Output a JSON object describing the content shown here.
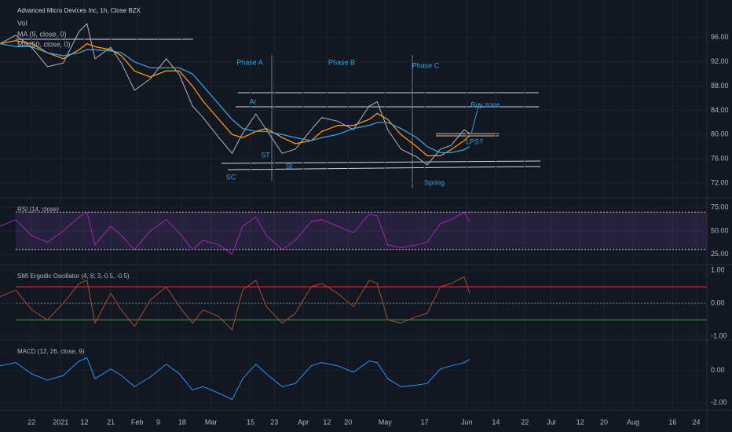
{
  "chart_data": [
    {
      "type": "line",
      "title": "Advanced Micro Devices Inc, 1h, Close BZX",
      "subtitle": "Vol",
      "x": [
        0,
        6,
        12,
        18,
        24,
        30,
        33,
        36,
        42,
        46,
        51,
        57,
        63,
        68,
        73,
        77,
        83,
        88,
        92,
        97,
        101,
        107,
        112,
        118,
        122,
        128,
        134,
        140,
        143,
        147,
        152,
        158,
        162,
        167,
        171,
        176,
        178
      ],
      "values": [
        95,
        96.4,
        94.4,
        91.2,
        91.8,
        97,
        98.3,
        92.5,
        94.4,
        91.8,
        87.3,
        89.2,
        92.5,
        89.9,
        84.7,
        82.8,
        79.5,
        76.9,
        80.2,
        83.4,
        80.8,
        76.9,
        77.6,
        80.8,
        82.8,
        82.2,
        80.8,
        84.7,
        85.4,
        80.8,
        77.6,
        76.3,
        75,
        77.6,
        78.2,
        80.8,
        80.2
      ],
      "color": "#b2b5be",
      "series": [
        {
          "name": "MA (9, close, 0)",
          "color": "#ff9800",
          "values": [
            95,
            95.5,
            95,
            93.5,
            92.5,
            94,
            95,
            94.5,
            94,
            93,
            90.5,
            89.5,
            90.5,
            90.5,
            88,
            85.5,
            82.5,
            80,
            79.5,
            80.5,
            81,
            79.5,
            78.5,
            79,
            80.5,
            81.5,
            81.5,
            82.5,
            83.5,
            82.5,
            80,
            78,
            76.5,
            76.5,
            77.5,
            79,
            79.8
          ]
        },
        {
          "name": "MA (50, close, 0)",
          "color": "#2ca5e0",
          "values": [
            95,
            94.5,
            94.5,
            93.5,
            93,
            93.5,
            94,
            94,
            93.8,
            93.5,
            92,
            91,
            91,
            91,
            90,
            88,
            85,
            82.5,
            81,
            80.5,
            80.5,
            80,
            79.5,
            79,
            79.5,
            80,
            81,
            81.5,
            82,
            82,
            81,
            79.5,
            78,
            77,
            77,
            77.5,
            78
          ]
        }
      ],
      "annotations": [
        "Phase A",
        "Phase B",
        "Phase C",
        "Ar",
        "ST",
        "SC",
        "St",
        "Spring",
        "LPS?",
        "Buy zone"
      ],
      "xlim": [
        0,
        268
      ],
      "xticks": [
        {
          "value": 12,
          "label": "22"
        },
        {
          "value": 23,
          "label": "2021"
        },
        {
          "value": 32,
          "label": "12"
        },
        {
          "value": 42,
          "label": "21"
        },
        {
          "value": 52,
          "label": "Feb"
        },
        {
          "value": 60,
          "label": "9"
        },
        {
          "value": 69,
          "label": "18"
        },
        {
          "value": 80,
          "label": "Mar"
        },
        {
          "value": 95,
          "label": "15"
        },
        {
          "value": 104,
          "label": "23"
        },
        {
          "value": 115,
          "label": "Apr"
        },
        {
          "value": 124,
          "label": "12"
        },
        {
          "value": 132,
          "label": "20"
        },
        {
          "value": 146,
          "label": "May"
        },
        {
          "value": 161,
          "label": "17"
        },
        {
          "value": 177,
          "label": "Jun"
        },
        {
          "value": 188,
          "label": "14"
        },
        {
          "value": 199,
          "label": "22"
        },
        {
          "value": 209,
          "label": "Jul"
        },
        {
          "value": 220,
          "label": "12"
        },
        {
          "value": 229,
          "label": "20"
        },
        {
          "value": 240,
          "label": "Aug"
        },
        {
          "value": 255,
          "label": "16"
        },
        {
          "value": 264,
          "label": "24"
        }
      ],
      "ylim": [
        69.8,
        102.2
      ],
      "yticks": [
        {
          "value": 72,
          "label": "72.00"
        },
        {
          "value": 76,
          "label": "76.00"
        },
        {
          "value": 80,
          "label": "80.00"
        },
        {
          "value": 84,
          "label": "84.00"
        },
        {
          "value": 88,
          "label": "88.00"
        },
        {
          "value": 92,
          "label": "92.00"
        },
        {
          "value": 96,
          "label": "96.00"
        }
      ],
      "grid": true
    },
    {
      "type": "line",
      "title": "RSI (14, close)",
      "x": [
        0,
        6,
        12,
        18,
        24,
        30,
        33,
        36,
        42,
        46,
        51,
        57,
        63,
        68,
        73,
        77,
        83,
        88,
        92,
        97,
        101,
        107,
        112,
        118,
        122,
        128,
        134,
        140,
        143,
        147,
        152,
        158,
        162,
        167,
        171,
        176,
        178
      ],
      "values": [
        55,
        62,
        45,
        38,
        50,
        65,
        70,
        35,
        55,
        45,
        30,
        50,
        62,
        48,
        30,
        40,
        35,
        25,
        55,
        65,
        45,
        30,
        40,
        60,
        62,
        55,
        48,
        68,
        66,
        35,
        32,
        35,
        38,
        58,
        62,
        70,
        60
      ],
      "color": "#9c27b0",
      "bands": [
        70,
        30
      ],
      "band_colors": [
        "#b2b5be",
        "#b2b5be"
      ],
      "ylim": [
        14.7,
        83.6
      ],
      "yticks": [
        {
          "value": 25,
          "label": "25.00"
        },
        {
          "value": 50,
          "label": "50.00"
        },
        {
          "value": 75,
          "label": "75.00"
        }
      ],
      "grid": true
    },
    {
      "type": "line",
      "title": "SMI Ergodic Oscillator (4, 8, 3, 0.5, -0.5)",
      "x": [
        0,
        6,
        12,
        18,
        24,
        30,
        33,
        36,
        42,
        46,
        51,
        57,
        63,
        68,
        73,
        77,
        83,
        88,
        92,
        97,
        101,
        107,
        112,
        118,
        122,
        128,
        134,
        140,
        143,
        147,
        152,
        158,
        162,
        167,
        171,
        176,
        178
      ],
      "values": [
        0.2,
        0.4,
        -0.2,
        -0.5,
        0,
        0.6,
        0.7,
        -0.6,
        0.3,
        -0.2,
        -0.7,
        0.1,
        0.5,
        -0.1,
        -0.6,
        -0.2,
        -0.4,
        -0.8,
        0.4,
        0.7,
        -0.1,
        -0.6,
        -0.3,
        0.5,
        0.6,
        0.3,
        -0.1,
        0.7,
        0.6,
        -0.5,
        -0.6,
        -0.4,
        -0.3,
        0.5,
        0.6,
        0.8,
        0.3
      ],
      "color": "#a0522d",
      "bands": [
        0.5,
        0,
        -0.5
      ],
      "band_colors": [
        "#e53935",
        "#787b86",
        "#43a047"
      ],
      "ylim": [
        -1.09,
        1.12
      ],
      "yticks": [
        {
          "value": -1,
          "label": "-1.00"
        },
        {
          "value": 0,
          "label": "0.00"
        },
        {
          "value": 1,
          "label": "1.00"
        }
      ],
      "grid": true
    },
    {
      "type": "line",
      "title": "MACD (12, 26, close, 9)",
      "x": [
        0,
        6,
        12,
        18,
        24,
        30,
        33,
        36,
        42,
        46,
        51,
        57,
        63,
        68,
        73,
        77,
        83,
        88,
        92,
        97,
        101,
        107,
        112,
        118,
        122,
        128,
        134,
        140,
        143,
        147,
        152,
        158,
        162,
        167,
        171,
        176,
        178
      ],
      "values": [
        0.3,
        0.5,
        -0.2,
        -0.6,
        -0.3,
        0.6,
        0.8,
        -0.5,
        0.1,
        -0.3,
        -1.0,
        -0.4,
        0.4,
        -0.2,
        -1.2,
        -1.0,
        -1.4,
        -1.8,
        -0.5,
        0.4,
        -0.2,
        -1.0,
        -0.8,
        0.3,
        0.5,
        0.3,
        -0.1,
        0.6,
        0.5,
        -0.5,
        -1.0,
        -0.9,
        -0.8,
        0.1,
        0.3,
        0.5,
        0.7
      ],
      "color": "#2196f3",
      "ylim": [
        -2.4,
        1.8
      ],
      "yticks": [
        {
          "value": -2,
          "label": "-2.00"
        },
        {
          "value": 0,
          "label": "0.00"
        }
      ],
      "grid": true
    }
  ]
}
